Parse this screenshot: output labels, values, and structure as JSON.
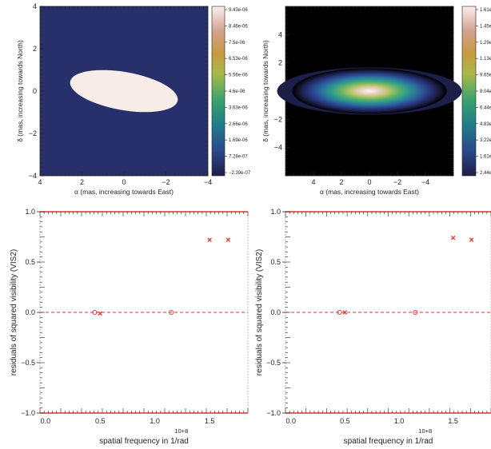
{
  "chart_data": [
    {
      "type": "heatmap",
      "panel": "top-left",
      "description_visible": "uniform-disk model image",
      "xlabel": "α (mas, increasing towards East)",
      "ylabel": "δ (mas, increasing towards North)",
      "xlim": [
        4,
        -4
      ],
      "ylim": [
        -4,
        4
      ],
      "xticks": [
        "4",
        "2",
        "0",
        "−2",
        "−4"
      ],
      "yticks": [
        "4",
        "2",
        "0",
        "−2",
        "−4"
      ],
      "model": {
        "shape": "uniform-ellipse",
        "center": [
          0,
          0
        ],
        "major_axis": 5.2,
        "minor_axis": 1.8,
        "position_angle_deg": 100
      },
      "colorbar_labels": [
        "9.43e-06",
        "8.46e-06",
        "7.5e-06",
        "6.53e-06",
        "5.56e-06",
        "4.6e-06",
        "3.63e-06",
        "2.66e-06",
        "1.69e-06",
        "7.28e-07",
        "−2.39e-07"
      ],
      "colors": {
        "background": "#27306b",
        "disk": "#f7ece8"
      }
    },
    {
      "type": "heatmap",
      "panel": "top-right",
      "description_visible": "convolved / reconstructed image",
      "xlabel": "α (mas, increasing towards East)",
      "ylabel": "δ (mas, increasing towards North)",
      "xlim": [
        6,
        -6
      ],
      "ylim": [
        -6,
        6
      ],
      "xticks": [
        "4",
        "2",
        "0",
        "−2",
        "−4"
      ],
      "yticks": [
        "4",
        "2",
        "0",
        "−2",
        "−4"
      ],
      "colorbar_labels": [
        "1.61e-",
        "1.45e-",
        "1.29e-",
        "1.13e-",
        "9.65e-",
        "8.04e-",
        "6.44e-",
        "4.83e-",
        "3.22e-",
        "1.61e-",
        "2.44e-"
      ],
      "colors": {
        "background": "#000000"
      }
    },
    {
      "type": "scatter",
      "panel": "bottom-left",
      "xlabel": "spatial frequency in 1/rad",
      "ylabel": "residuals of squared visibility (VIS2)",
      "x_multiplier": "10+8",
      "xlim": [
        -0.05,
        1.85
      ],
      "ylim": [
        -1.0,
        1.0
      ],
      "xticks": [
        "0.0",
        "0.5",
        "1.0",
        "1.5"
      ],
      "yticks": [
        "1.0",
        "0.5",
        "0.0",
        "−0.5",
        "−1.0"
      ],
      "series": [
        {
          "marker": "circle",
          "points": [
            [
              0.45,
              0.0
            ],
            [
              1.15,
              0.0
            ]
          ]
        },
        {
          "marker": "x",
          "points": [
            [
              0.5,
              -0.01
            ],
            [
              1.5,
              0.72
            ],
            [
              1.67,
              0.72
            ]
          ]
        }
      ],
      "reference_lines": [
        1.0,
        0.0,
        -1.0
      ],
      "colors": {
        "markers": "#e23333",
        "lines": "#e23333"
      }
    },
    {
      "type": "scatter",
      "panel": "bottom-right",
      "xlabel": "spatial frequency in 1/rad",
      "ylabel": "residuals of squared visibility (VIS2)",
      "x_multiplier": "10+8",
      "xlim": [
        -0.05,
        1.85
      ],
      "ylim": [
        -1.0,
        1.0
      ],
      "xticks": [
        "0.0",
        "0.5",
        "1.0",
        "1.5"
      ],
      "yticks": [
        "1.0",
        "0.5",
        "0.0",
        "−0.5",
        "−1.0"
      ],
      "series": [
        {
          "marker": "circle",
          "points": [
            [
              0.45,
              0.0
            ],
            [
              1.15,
              0.0
            ]
          ]
        },
        {
          "marker": "x",
          "points": [
            [
              0.5,
              0.0
            ],
            [
              1.5,
              0.74
            ],
            [
              1.67,
              0.72
            ]
          ]
        }
      ],
      "reference_lines": [
        1.0,
        0.0,
        -1.0
      ],
      "colors": {
        "markers": "#e23333",
        "lines": "#e23333"
      }
    }
  ]
}
